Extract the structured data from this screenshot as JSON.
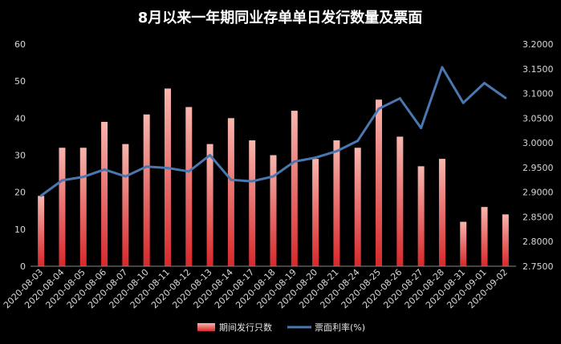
{
  "chart_data": {
    "type": "bar",
    "title": "8月以来一年期同业存单单日发行数量及票面",
    "categories": [
      "2020-08-03",
      "2020-08-04",
      "2020-08-05",
      "2020-08-06",
      "2020-08-07",
      "2020-08-10",
      "2020-08-11",
      "2020-08-12",
      "2020-08-13",
      "2020-08-14",
      "2020-08-17",
      "2020-08-18",
      "2020-08-19",
      "2020-08-20",
      "2020-08-21",
      "2020-08-24",
      "2020-08-25",
      "2020-08-26",
      "2020-08-27",
      "2020-08-28",
      "2020-08-31",
      "2020-09-01",
      "2020-09-02"
    ],
    "series": [
      {
        "name": "期间发行只数",
        "type": "bar",
        "axis": "left",
        "values": [
          19,
          32,
          32,
          39,
          33,
          41,
          48,
          43,
          33,
          40,
          34,
          30,
          42,
          29,
          34,
          32,
          45,
          35,
          27,
          29,
          12,
          16,
          14
        ]
      },
      {
        "name": "票面利率(%)",
        "type": "line",
        "axis": "right",
        "values": [
          2.893,
          2.924,
          2.931,
          2.946,
          2.932,
          2.952,
          2.949,
          2.942,
          2.975,
          2.925,
          2.922,
          2.932,
          2.962,
          2.97,
          2.983,
          3.004,
          3.069,
          3.09,
          3.03,
          3.153,
          3.081,
          3.121,
          3.091
        ]
      }
    ],
    "left_axis": {
      "ylim": [
        0,
        60
      ],
      "ticks": [
        "0",
        "10",
        "20",
        "30",
        "40",
        "50",
        "60"
      ]
    },
    "right_axis": {
      "ylim": [
        2.75,
        3.2
      ],
      "ticks": [
        "2.7500",
        "2.8000",
        "2.8500",
        "2.9000",
        "2.9500",
        "3.0000",
        "3.0500",
        "3.1000",
        "3.1500",
        "3.2000"
      ]
    },
    "grid": false,
    "legend_position": "bottom-center",
    "colors": {
      "bar_top": "#f7b6ae",
      "bar_bottom": "#d7282b",
      "line": "#4a77b0",
      "background": "#000000",
      "text": "#d8d8d8"
    }
  }
}
